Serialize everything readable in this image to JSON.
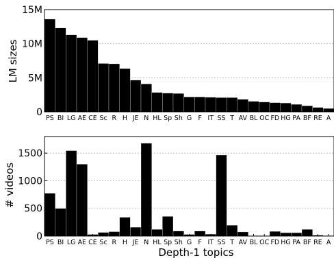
{
  "chart_data": [
    {
      "type": "bar",
      "ylabel": "LM sizes",
      "ylim": [
        0,
        15000000
      ],
      "yticks": [
        0,
        5000000,
        10000000,
        15000000
      ],
      "ytick_labels": [
        "0",
        "5M",
        "10M",
        "15M"
      ],
      "grid": "horizontal dotted",
      "categories": [
        "PS",
        "BI",
        "LG",
        "AE",
        "CE",
        "Sc",
        "R",
        "H",
        "JE",
        "N",
        "HL",
        "Sp",
        "Sh",
        "G",
        "F",
        "IT",
        "SS",
        "T",
        "AV",
        "BL",
        "OC",
        "FD",
        "HG",
        "PA",
        "BF",
        "RE",
        "A"
      ],
      "values": [
        13600000,
        12300000,
        11300000,
        10900000,
        10500000,
        7100000,
        7050000,
        6350000,
        4650000,
        4100000,
        2850000,
        2750000,
        2700000,
        2200000,
        2200000,
        2150000,
        2100000,
        2100000,
        1850000,
        1550000,
        1450000,
        1350000,
        1300000,
        1100000,
        900000,
        650000,
        500000
      ]
    },
    {
      "type": "bar",
      "ylabel": "# videos",
      "xlabel": "Depth-1 topics",
      "ylim": [
        0,
        1800
      ],
      "yticks": [
        0,
        500,
        1000,
        1500
      ],
      "ytick_labels": [
        "0",
        "500",
        "1000",
        "1500"
      ],
      "grid": "horizontal dotted",
      "categories": [
        "PS",
        "BI",
        "LG",
        "AE",
        "CE",
        "Sc",
        "R",
        "H",
        "JE",
        "N",
        "HL",
        "Sp",
        "Sh",
        "G",
        "F",
        "IT",
        "SS",
        "T",
        "AV",
        "BL",
        "OC",
        "FD",
        "HG",
        "PA",
        "BF",
        "RE",
        "A"
      ],
      "values": [
        775,
        500,
        1545,
        1300,
        30,
        65,
        80,
        340,
        160,
        1680,
        120,
        355,
        90,
        30,
        90,
        35,
        1465,
        195,
        75,
        5,
        5,
        85,
        60,
        60,
        120,
        15,
        5
      ]
    }
  ]
}
